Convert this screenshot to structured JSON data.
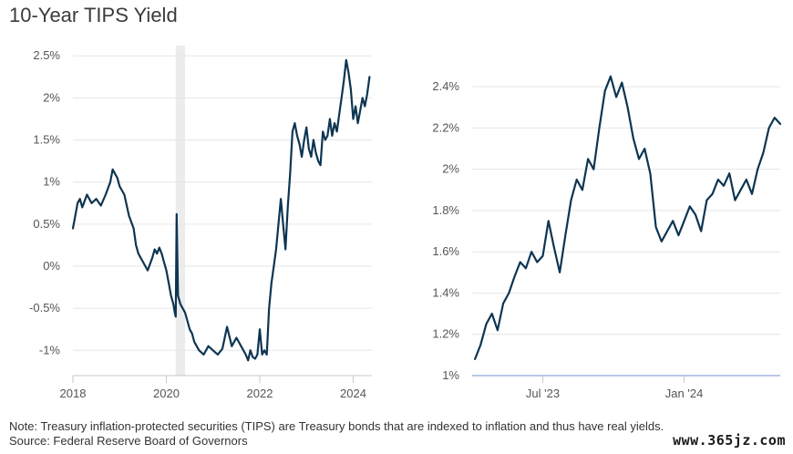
{
  "title": "10-Year TIPS Yield",
  "note": "Note: Treasury inflation-protected securities (TIPS) are Treasury bonds that are indexed to inflation and thus have real yields.",
  "source": "Source: Federal Reserve Board of Governors",
  "watermark": "www.365jz.com",
  "chart_data": [
    {
      "type": "line",
      "title": "",
      "xlabel": "",
      "ylabel": "",
      "x_ticks": [
        "2018",
        "2020",
        "2022",
        "2024"
      ],
      "x_tick_values": [
        2018,
        2020,
        2022,
        2024
      ],
      "y_ticks": [
        "2.5%",
        "2%",
        "1.5%",
        "1%",
        "0.5%",
        "0%",
        "-0.5%",
        "-1%"
      ],
      "y_tick_values": [
        2.5,
        2,
        1.5,
        1,
        0.5,
        0,
        -0.5,
        -1
      ],
      "xlim": [
        2018,
        2024.4
      ],
      "ylim": [
        -1.3,
        2.6
      ],
      "grid": true,
      "shaded_region": [
        2020.2,
        2020.4
      ],
      "series": [
        {
          "color": "#0d3552",
          "x": [
            2018.0,
            2018.05,
            2018.1,
            2018.15,
            2018.2,
            2018.3,
            2018.4,
            2018.5,
            2018.6,
            2018.7,
            2018.8,
            2018.85,
            2018.9,
            2018.95,
            2019.0,
            2019.1,
            2019.2,
            2019.3,
            2019.35,
            2019.4,
            2019.5,
            2019.6,
            2019.7,
            2019.75,
            2019.8,
            2019.85,
            2019.9,
            2019.95,
            2020.0,
            2020.05,
            2020.1,
            2020.15,
            2020.18,
            2020.2,
            2020.22,
            2020.25,
            2020.3,
            2020.35,
            2020.4,
            2020.45,
            2020.5,
            2020.55,
            2020.6,
            2020.7,
            2020.8,
            2020.9,
            2021.0,
            2021.1,
            2021.2,
            2021.3,
            2021.4,
            2021.5,
            2021.6,
            2021.7,
            2021.75,
            2021.8,
            2021.85,
            2021.9,
            2021.95,
            2022.0,
            2022.05,
            2022.1,
            2022.15,
            2022.2,
            2022.25,
            2022.3,
            2022.35,
            2022.4,
            2022.45,
            2022.5,
            2022.55,
            2022.6,
            2022.65,
            2022.7,
            2022.75,
            2022.8,
            2022.85,
            2022.9,
            2022.95,
            2023.0,
            2023.05,
            2023.1,
            2023.15,
            2023.2,
            2023.25,
            2023.3,
            2023.35,
            2023.4,
            2023.45,
            2023.5,
            2023.55,
            2023.6,
            2023.65,
            2023.7,
            2023.75,
            2023.8,
            2023.85,
            2023.9,
            2023.95,
            2024.0,
            2024.05,
            2024.1,
            2024.15,
            2024.2,
            2024.25,
            2024.3,
            2024.35
          ],
          "values": [
            0.45,
            0.6,
            0.75,
            0.8,
            0.7,
            0.85,
            0.75,
            0.8,
            0.72,
            0.85,
            1.0,
            1.15,
            1.1,
            1.05,
            0.95,
            0.85,
            0.6,
            0.45,
            0.25,
            0.15,
            0.05,
            -0.05,
            0.1,
            0.2,
            0.15,
            0.22,
            0.15,
            0.05,
            -0.05,
            -0.2,
            -0.35,
            -0.45,
            -0.55,
            -0.6,
            0.62,
            -0.35,
            -0.45,
            -0.5,
            -0.55,
            -0.65,
            -0.75,
            -0.8,
            -0.9,
            -1.0,
            -1.05,
            -0.95,
            -1.0,
            -1.05,
            -0.98,
            -0.72,
            -0.95,
            -0.85,
            -0.95,
            -1.05,
            -1.12,
            -1.0,
            -1.08,
            -1.1,
            -1.05,
            -0.75,
            -1.05,
            -1.0,
            -1.05,
            -0.5,
            -0.2,
            0.0,
            0.2,
            0.5,
            0.8,
            0.5,
            0.2,
            0.7,
            1.1,
            1.6,
            1.7,
            1.55,
            1.45,
            1.3,
            1.5,
            1.65,
            1.4,
            1.3,
            1.5,
            1.35,
            1.25,
            1.2,
            1.6,
            1.5,
            1.55,
            1.75,
            1.55,
            1.7,
            1.6,
            1.8,
            2.0,
            2.2,
            2.45,
            2.3,
            2.1,
            1.75,
            1.9,
            1.7,
            1.85,
            2.0,
            1.9,
            2.05,
            2.25
          ]
        }
      ]
    },
    {
      "type": "line",
      "title": "",
      "xlabel": "",
      "ylabel": "",
      "x_ticks": [
        "Jul '23",
        "Jan '24"
      ],
      "x_tick_values": [
        2023.5,
        2024.0
      ],
      "y_ticks": [
        "2.4%",
        "2.2%",
        "2%",
        "1.8%",
        "1.6%",
        "1.4%",
        "1.2%",
        "1%"
      ],
      "y_tick_values": [
        2.4,
        2.2,
        2.0,
        1.8,
        1.6,
        1.4,
        1.2,
        1.0
      ],
      "xlim": [
        2023.25,
        2024.34
      ],
      "ylim": [
        1.0,
        2.52
      ],
      "grid": true,
      "series": [
        {
          "color": "#0d3552",
          "x": [
            2023.26,
            2023.28,
            2023.3,
            2023.32,
            2023.34,
            2023.36,
            2023.38,
            2023.4,
            2023.42,
            2023.44,
            2023.46,
            2023.48,
            2023.5,
            2023.52,
            2023.54,
            2023.56,
            2023.58,
            2023.6,
            2023.62,
            2023.64,
            2023.66,
            2023.68,
            2023.7,
            2023.72,
            2023.74,
            2023.76,
            2023.78,
            2023.8,
            2023.82,
            2023.84,
            2023.86,
            2023.88,
            2023.9,
            2023.92,
            2023.94,
            2023.96,
            2023.98,
            2024.0,
            2024.02,
            2024.04,
            2024.06,
            2024.08,
            2024.1,
            2024.12,
            2024.14,
            2024.16,
            2024.18,
            2024.2,
            2024.22,
            2024.24,
            2024.26,
            2024.28,
            2024.3,
            2024.32,
            2024.34
          ],
          "values": [
            1.08,
            1.15,
            1.25,
            1.3,
            1.22,
            1.35,
            1.4,
            1.48,
            1.55,
            1.52,
            1.6,
            1.55,
            1.58,
            1.75,
            1.62,
            1.5,
            1.68,
            1.85,
            1.95,
            1.9,
            2.05,
            2.0,
            2.2,
            2.38,
            2.45,
            2.35,
            2.42,
            2.3,
            2.15,
            2.05,
            2.1,
            1.98,
            1.72,
            1.65,
            1.7,
            1.75,
            1.68,
            1.75,
            1.82,
            1.78,
            1.7,
            1.85,
            1.88,
            1.95,
            1.92,
            1.98,
            1.85,
            1.9,
            1.95,
            1.88,
            2.0,
            2.08,
            2.2,
            2.25,
            2.22
          ]
        }
      ]
    }
  ]
}
